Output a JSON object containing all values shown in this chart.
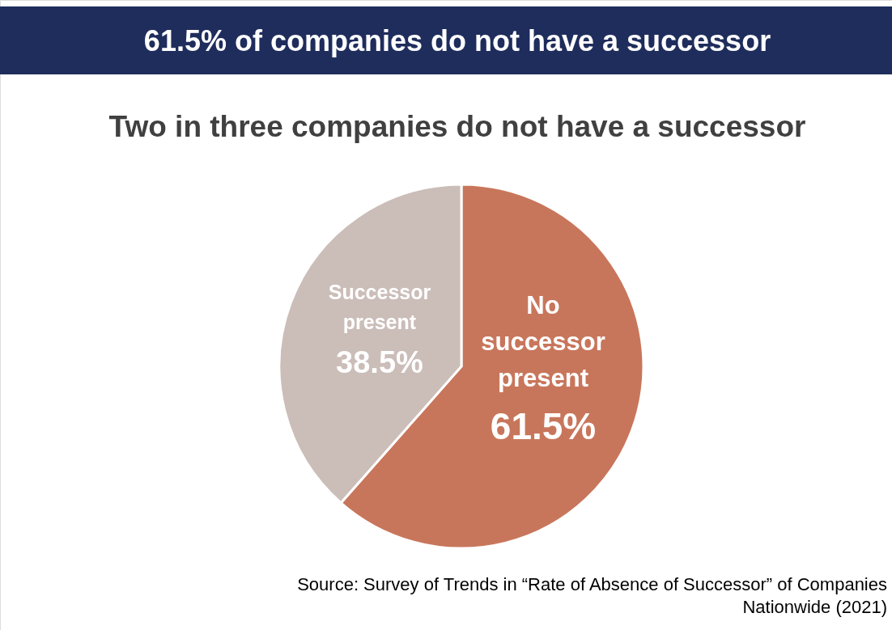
{
  "chart_data": {
    "type": "pie",
    "title": "61.5% of companies do not have a successor",
    "subtitle": "Two in three companies do not have a successor",
    "categories": [
      "No successor present",
      "Successor present"
    ],
    "values": [
      61.5,
      38.5
    ],
    "colors": [
      "#c8765b",
      "#cbbdb8"
    ],
    "value_labels": [
      "61.5%",
      "38.5%"
    ],
    "annotations": [
      "Source: Survey of Trends in “Rate of Absence of Successor” of Companies Nationwide (2021)"
    ]
  }
}
